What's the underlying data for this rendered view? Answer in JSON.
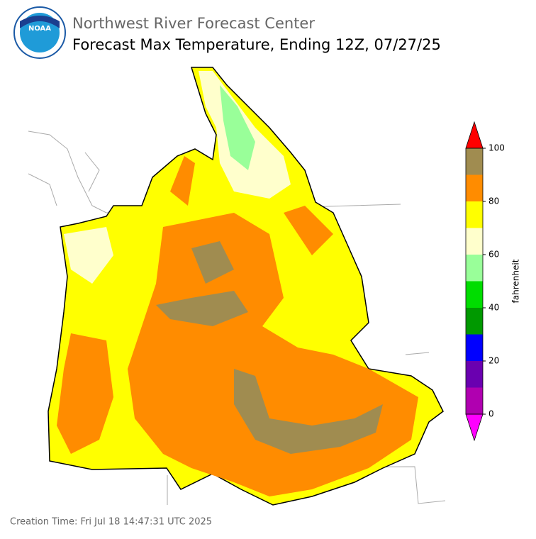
{
  "header": {
    "logo_text": "NOAA",
    "agency": "Northwest River Forecast Center",
    "title": "Forecast Max Temperature, Ending 12Z, 07/27/25"
  },
  "colorbar": {
    "label": "fahrenheit",
    "lim": [
      0,
      100
    ],
    "ticks": [
      0,
      20,
      40,
      60,
      80,
      100
    ],
    "bins": [
      0,
      10,
      20,
      30,
      40,
      50,
      60,
      70,
      80,
      90,
      100
    ],
    "colors": [
      "#b000b0",
      "#6a00b0",
      "#0000ff",
      "#009900",
      "#00dd00",
      "#99ff99",
      "#ffffcc",
      "#ffff00",
      "#ff8c00",
      "#a08c50"
    ],
    "under_color": "#ff00ff",
    "over_color": "#ff0000"
  },
  "footer": {
    "creation_time": "Creation Time: Fri Jul 18 14:47:31 UTC 2025"
  }
}
